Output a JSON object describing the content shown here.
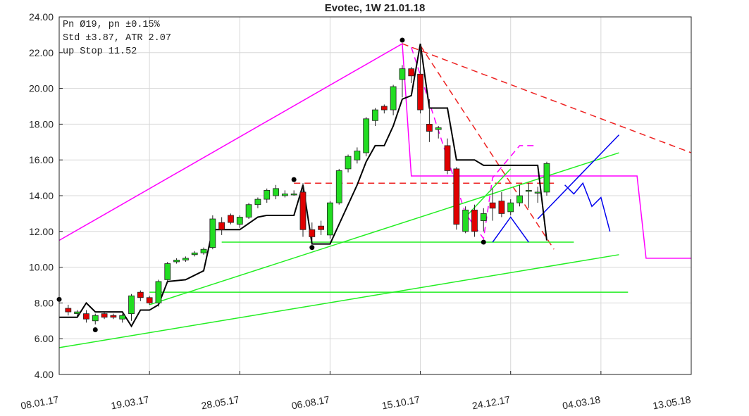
{
  "chart_data": {
    "type": "candlestick",
    "title": "Evotec, 1W 21.01.18",
    "info": [
      "Pn  Ø19, pn ±0.15%",
      "Std ±3.87, ATR 2.07",
      "up Stop 11.52"
    ],
    "xlim": [
      0,
      70
    ],
    "xticks": [
      {
        "value": 0,
        "label": "08.01.17"
      },
      {
        "value": 10,
        "label": "19.03.17"
      },
      {
        "value": 20,
        "label": "28.05.17"
      },
      {
        "value": 30,
        "label": "06.08.17"
      },
      {
        "value": 40,
        "label": "15.10.17"
      },
      {
        "value": 50,
        "label": "24.12.17"
      },
      {
        "value": 60,
        "label": "04.03.18"
      },
      {
        "value": 70,
        "label": "13.05.18"
      }
    ],
    "ylim": [
      4,
      24
    ],
    "yticks": [
      {
        "value": 4,
        "label": "4.00"
      },
      {
        "value": 6,
        "label": "6.00"
      },
      {
        "value": 8,
        "label": "8.00"
      },
      {
        "value": 10,
        "label": "10.00"
      },
      {
        "value": 12,
        "label": "12.00"
      },
      {
        "value": 14,
        "label": "14.00"
      },
      {
        "value": 16,
        "label": "16.00"
      },
      {
        "value": 18,
        "label": "18.00"
      },
      {
        "value": 20,
        "label": "20.00"
      },
      {
        "value": 22,
        "label": "22.00"
      },
      {
        "value": 24,
        "label": "24.00"
      }
    ],
    "grid": true,
    "up_color": "#22dd22",
    "down_color": "#e00000",
    "candles": {
      "x": [
        1,
        2,
        3,
        4,
        5,
        6,
        7,
        8,
        9,
        10,
        11,
        12,
        13,
        14,
        15,
        16,
        17,
        18,
        19,
        20,
        21,
        22,
        23,
        24,
        25,
        26,
        27,
        28,
        29,
        30,
        31,
        32,
        33,
        34,
        35,
        36,
        37,
        38,
        39,
        40,
        41,
        42,
        43,
        44,
        45,
        46,
        47,
        48,
        49,
        50,
        51,
        52,
        53,
        54
      ],
      "open": [
        7.7,
        7.4,
        7.4,
        7.0,
        7.4,
        7.3,
        7.1,
        7.4,
        8.6,
        8.3,
        8.0,
        9.3,
        10.3,
        10.4,
        10.7,
        10.8,
        11.1,
        12.5,
        12.9,
        12.4,
        12.8,
        13.5,
        13.8,
        14.0,
        14.0,
        14.1,
        14.2,
        12.1,
        12.3,
        11.8,
        13.6,
        15.5,
        16.0,
        16.4,
        18.2,
        19.0,
        18.8,
        20.5,
        21.1,
        20.8,
        18.0,
        17.7,
        16.8,
        15.5,
        12.0,
        13.2,
        12.6,
        13.6,
        13.7,
        13.1,
        13.6,
        14.3,
        14.2,
        14.2
      ],
      "high": [
        7.9,
        7.6,
        7.6,
        7.4,
        7.5,
        7.4,
        7.4,
        8.5,
        8.7,
        8.4,
        9.3,
        10.3,
        10.5,
        10.6,
        10.9,
        11.1,
        12.9,
        12.8,
        13.0,
        12.9,
        13.6,
        13.9,
        14.4,
        14.6,
        14.3,
        14.3,
        14.7,
        12.5,
        12.6,
        13.7,
        15.5,
        16.3,
        16.7,
        18.4,
        18.9,
        19.1,
        20.2,
        21.3,
        21.2,
        22.4,
        19.4,
        17.9,
        17.2,
        15.6,
        13.4,
        13.5,
        13.3,
        14.4,
        14.2,
        13.8,
        14.6,
        14.7,
        14.5,
        15.9
      ],
      "low": [
        7.3,
        7.2,
        6.9,
        6.8,
        7.1,
        7.1,
        6.9,
        7.0,
        8.1,
        7.9,
        7.8,
        9.1,
        10.2,
        10.3,
        10.6,
        10.7,
        11.0,
        11.8,
        12.4,
        12.2,
        12.7,
        13.3,
        13.6,
        13.8,
        13.9,
        14.0,
        11.7,
        11.4,
        11.8,
        11.6,
        13.5,
        15.3,
        15.8,
        16.2,
        17.9,
        18.6,
        18.5,
        19.5,
        20.3,
        18.6,
        17.0,
        17.2,
        15.2,
        12.1,
        11.9,
        11.7,
        12.0,
        12.6,
        12.8,
        12.9,
        13.4,
        13.3,
        13.6,
        14.0
      ],
      "close": [
        7.5,
        7.5,
        7.1,
        7.3,
        7.2,
        7.2,
        7.3,
        8.4,
        8.3,
        8.0,
        9.2,
        10.2,
        10.4,
        10.5,
        10.8,
        11.0,
        12.7,
        12.1,
        12.5,
        12.8,
        13.5,
        13.8,
        14.3,
        14.4,
        14.1,
        14.1,
        12.1,
        11.7,
        12.1,
        13.6,
        15.4,
        16.2,
        16.5,
        18.3,
        18.8,
        18.8,
        20.1,
        21.1,
        20.7,
        18.8,
        17.6,
        17.8,
        15.4,
        12.4,
        13.2,
        12.0,
        13.0,
        13.3,
        13.0,
        13.6,
        14.0,
        14.3,
        14.2,
        15.8
      ]
    },
    "overlays": [
      {
        "color": "#ff00ff",
        "dash": false,
        "x": [
          0,
          38,
          39,
          64,
          65,
          70
        ],
        "y": [
          11.5,
          22.5,
          15.1,
          15.1,
          10.5,
          10.5
        ]
      },
      {
        "color": "#ff00ff",
        "dash": true,
        "x": [
          39,
          45,
          47,
          48,
          51,
          53
        ],
        "y": [
          22.3,
          13.0,
          11.6,
          15.0,
          16.8,
          16.8
        ]
      },
      {
        "color": "#ee2222",
        "dash": true,
        "x": [
          38,
          70
        ],
        "y": [
          22.5,
          16.4
        ]
      },
      {
        "color": "#ee2222",
        "dash": true,
        "x": [
          40,
          54.8
        ],
        "y": [
          22.4,
          11.0
        ]
      },
      {
        "color": "#ee2222",
        "dash": true,
        "x": [
          26,
          54.8
        ],
        "y": [
          14.7,
          14.7
        ]
      },
      {
        "color": "#22ee22",
        "dash": false,
        "x": [
          0,
          62
        ],
        "y": [
          5.5,
          10.7
        ]
      },
      {
        "color": "#22ee22",
        "dash": false,
        "x": [
          10,
          63
        ],
        "y": [
          8.6,
          8.6
        ]
      },
      {
        "color": "#22ee22",
        "dash": false,
        "x": [
          10,
          62
        ],
        "y": [
          7.9,
          16.4
        ]
      },
      {
        "color": "#22ee22",
        "dash": false,
        "x": [
          18,
          57
        ],
        "y": [
          11.4,
          11.4
        ]
      },
      {
        "color": "#22ee22",
        "dash": false,
        "x": [
          45,
          50
        ],
        "y": [
          12.8,
          15.5
        ]
      },
      {
        "color": "#0000ee",
        "dash": false,
        "x": [
          48,
          50,
          52
        ],
        "y": [
          11.4,
          12.8,
          11.4
        ]
      },
      {
        "color": "#0000ee",
        "dash": false,
        "x": [
          53,
          62
        ],
        "y": [
          12.7,
          17.4
        ]
      },
      {
        "color": "#0000ee",
        "dash": false,
        "x": [
          56,
          57,
          58,
          59,
          60,
          61
        ],
        "y": [
          14.6,
          14.1,
          14.7,
          13.4,
          13.9,
          12.0
        ]
      },
      {
        "color": "#000000",
        "dash": false,
        "x": [
          0,
          2,
          3,
          4,
          7,
          8,
          9,
          10,
          11,
          12,
          14,
          16,
          17,
          20,
          22,
          23,
          26,
          27,
          28,
          30,
          31,
          33,
          34,
          35,
          36,
          37,
          38,
          39,
          40,
          41,
          43,
          44,
          46,
          47,
          53,
          54
        ],
        "y": [
          7.2,
          7.2,
          8.0,
          7.5,
          7.5,
          6.7,
          7.6,
          7.6,
          7.9,
          9.2,
          9.3,
          9.8,
          12.1,
          12.1,
          12.8,
          12.9,
          12.9,
          14.6,
          11.3,
          11.3,
          12.4,
          14.6,
          15.9,
          16.8,
          16.8,
          17.9,
          19.4,
          19.6,
          22.5,
          18.9,
          18.9,
          16.0,
          16.0,
          15.7,
          15.7,
          11.5
        ]
      }
    ],
    "markers": {
      "x": [
        0,
        4,
        26,
        28,
        38,
        47
      ],
      "y": [
        8.2,
        6.5,
        14.9,
        11.1,
        22.7,
        11.4
      ]
    }
  }
}
